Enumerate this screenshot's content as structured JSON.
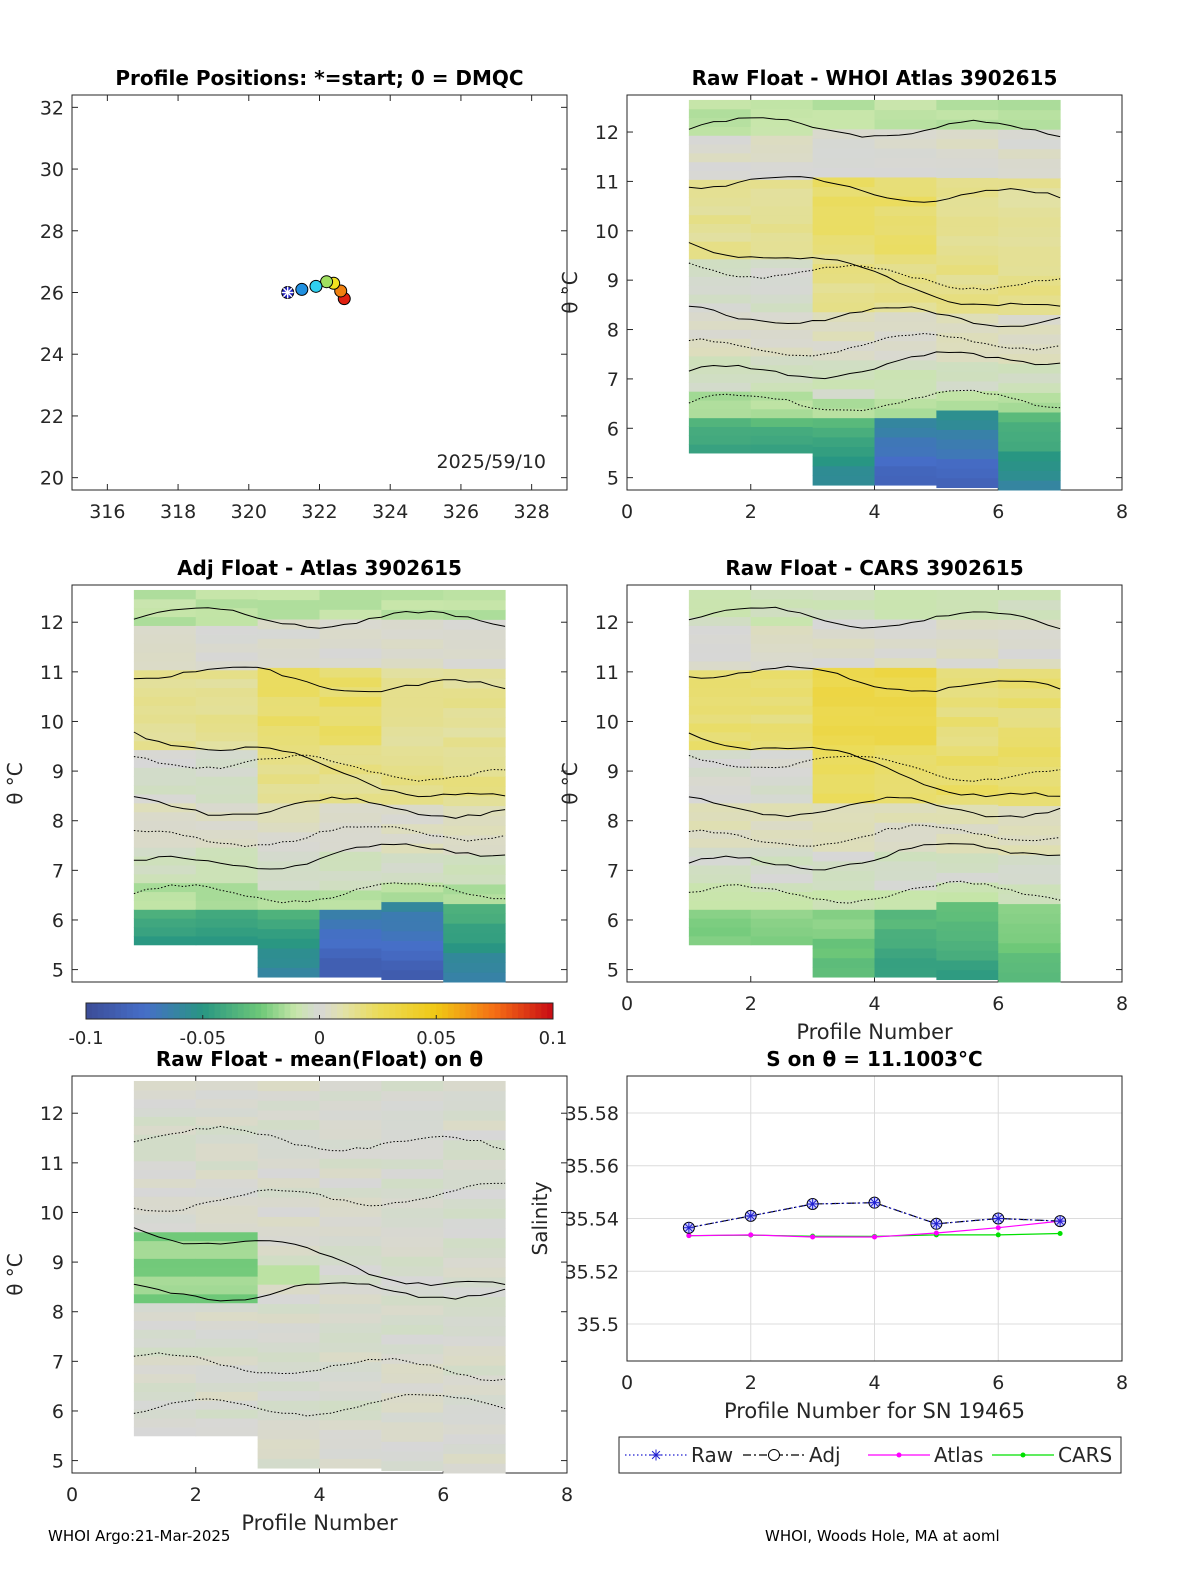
{
  "footer": {
    "left": "WHOI Argo:21-Mar-2025",
    "right": "WHOI, Woods Hole, MA at aoml"
  },
  "colorbar": {
    "ticks": [
      "-0.1",
      "-0.05",
      "0",
      "0.05",
      "0.1"
    ],
    "range": [
      -0.1,
      0.1
    ]
  },
  "colors": {
    "raw": "#1f1fd0",
    "adj": "#000000",
    "atlas": "#ff00ff",
    "cars": "#00e000",
    "contour": "#000000",
    "grid": "#dcdcdc"
  },
  "chart_data": [
    {
      "id": "positions",
      "type": "scatter",
      "title": "Profile Positions: *=start; 0 = DMQC",
      "annotation": "2025/59/10",
      "xlim": [
        315,
        329
      ],
      "ylim": [
        19.6,
        32.4
      ],
      "xticks": [
        "316",
        "318",
        "320",
        "322",
        "324",
        "326",
        "328"
      ],
      "yticks": [
        "20",
        "22",
        "24",
        "26",
        "28",
        "30",
        "32"
      ],
      "x": [
        321.1,
        321.5,
        321.9,
        322.2,
        322.4,
        322.6,
        322.7
      ],
      "y": [
        26.0,
        26.1,
        26.2,
        26.35,
        26.3,
        26.05,
        25.8
      ],
      "point_colors": [
        "#2020c0",
        "#2090e0",
        "#30d0f0",
        "#a0e060",
        "#f0e020",
        "#f08010",
        "#e02010"
      ]
    },
    {
      "id": "whoi",
      "type": "heatmap",
      "title": "Raw Float - WHOI Atlas  3902615",
      "ylabel": "θ °C",
      "xlim": [
        0,
        8
      ],
      "ylim": [
        4.75,
        12.75
      ],
      "xticks": [
        "0",
        "2",
        "4",
        "6",
        "8"
      ],
      "yticks": [
        "5",
        "6",
        "7",
        "8",
        "9",
        "10",
        "11",
        "12"
      ],
      "profiles": [
        1,
        2,
        3,
        4,
        5,
        6
      ],
      "theta_bottom": [
        5.5,
        5.5,
        4.85,
        4.85,
        4.8,
        4.75
      ]
    },
    {
      "id": "adj",
      "type": "heatmap",
      "title": "Adj Float - Atlas  3902615",
      "ylabel": "θ °C",
      "xlim": [
        0,
        8
      ],
      "ylim": [
        4.75,
        12.75
      ],
      "yticks": [
        "5",
        "6",
        "7",
        "8",
        "9",
        "10",
        "11",
        "12"
      ],
      "profiles": [
        1,
        2,
        3,
        4,
        5,
        6
      ],
      "theta_bottom": [
        5.5,
        5.5,
        4.85,
        4.85,
        4.8,
        4.75
      ]
    },
    {
      "id": "cars",
      "type": "heatmap",
      "title": "Raw Float - CARS  3902615",
      "ylabel": "θ °C",
      "xlabel": "Profile Number",
      "xlim": [
        0,
        8
      ],
      "ylim": [
        4.75,
        12.75
      ],
      "xticks": [
        "0",
        "2",
        "4",
        "6",
        "8"
      ],
      "yticks": [
        "5",
        "6",
        "7",
        "8",
        "9",
        "10",
        "11",
        "12"
      ],
      "profiles": [
        1,
        2,
        3,
        4,
        5,
        6
      ],
      "theta_bottom": [
        5.5,
        5.5,
        4.85,
        4.85,
        4.8,
        4.75
      ]
    },
    {
      "id": "mean",
      "type": "heatmap",
      "title": "Raw Float - mean(Float) on θ",
      "ylabel": "θ °C",
      "xlabel": "Profile Number",
      "xlim": [
        0,
        8
      ],
      "ylim": [
        4.75,
        12.75
      ],
      "xticks": [
        "0",
        "2",
        "4",
        "6",
        "8"
      ],
      "yticks": [
        "5",
        "6",
        "7",
        "8",
        "9",
        "10",
        "11",
        "12"
      ],
      "profiles": [
        1,
        2,
        3,
        4,
        5,
        6
      ],
      "theta_bottom": [
        5.5,
        5.5,
        4.85,
        4.85,
        4.8,
        4.75
      ]
    },
    {
      "id": "salinity",
      "type": "line",
      "title": "S on θ = 11.1003°C",
      "xlabel": "Profile Number for SN 19465",
      "ylabel": "Salinity",
      "xlim": [
        0,
        8
      ],
      "ylim": [
        35.486,
        35.594
      ],
      "grid": true,
      "xticks": [
        "0",
        "2",
        "4",
        "6",
        "8"
      ],
      "yticks": [
        "35.5",
        "35.52",
        "35.54",
        "35.56",
        "35.58"
      ],
      "legend_position": "bottom",
      "x": [
        1,
        2,
        3,
        4,
        5,
        6,
        7
      ],
      "series": [
        {
          "name": "Raw",
          "values": [
            35.5365,
            35.541,
            35.5455,
            35.546,
            35.538,
            35.54,
            35.539
          ]
        },
        {
          "name": "Adj",
          "values": [
            35.5365,
            35.541,
            35.5455,
            35.546,
            35.538,
            35.54,
            35.539
          ]
        },
        {
          "name": "Atlas",
          "values": [
            35.5335,
            35.5338,
            35.533,
            35.533,
            35.5345,
            35.5365,
            35.539
          ]
        },
        {
          "name": "CARS",
          "values": [
            35.5335,
            35.5337,
            35.5333,
            35.5332,
            35.5338,
            35.5338,
            35.5343
          ]
        }
      ]
    }
  ]
}
